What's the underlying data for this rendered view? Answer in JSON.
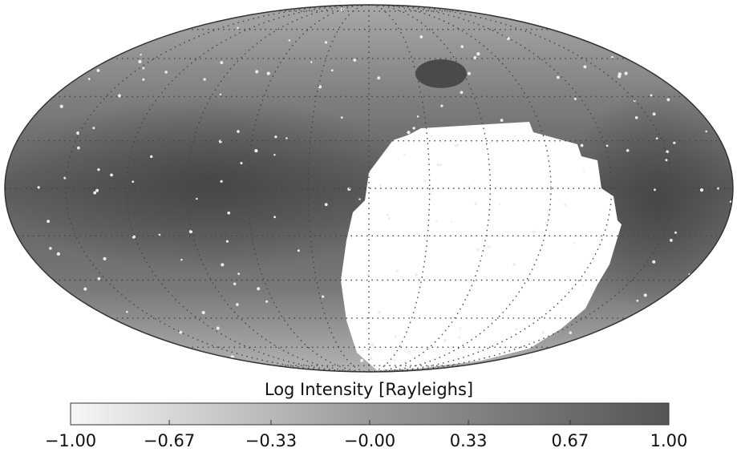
{
  "colorbar": {
    "label": "Log Intensity [Rayleighs]",
    "range": [
      -1,
      1
    ],
    "ticks": [
      {
        "value": -1,
        "label": "−1.00"
      },
      {
        "value": -0.67,
        "label": "−0.67"
      },
      {
        "value": -0.33,
        "label": "−0.33"
      },
      {
        "value": 0,
        "label": "−0.00"
      },
      {
        "value": 0.33,
        "label": "0.33"
      },
      {
        "value": 0.67,
        "label": "0.67"
      },
      {
        "value": 1,
        "label": "1.00"
      }
    ]
  }
}
